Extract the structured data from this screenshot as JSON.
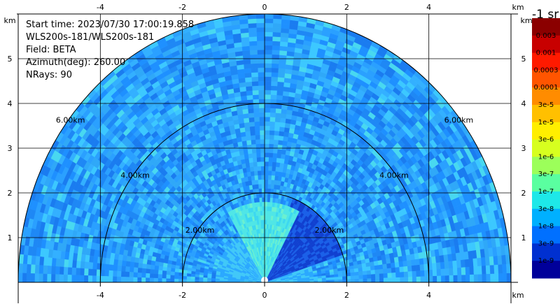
{
  "chart_data": {
    "type": "heatmap",
    "info_lines": [
      "Start time: 2023/07/30 17:00:19.858",
      "WLS200s-181/WLS200s-181",
      "Field: BETA",
      "Azimuth(deg): 260.00",
      "NRays: 90"
    ],
    "x_unit": "km",
    "y_unit": "km",
    "xlim": [
      -6,
      6
    ],
    "ylim": [
      0,
      6
    ],
    "x_ticks": [
      -4,
      -2,
      0,
      2,
      4
    ],
    "y_ticks": [
      1,
      2,
      3,
      4,
      5
    ],
    "range_rings": [
      {
        "radius": 2,
        "label": "2.00km"
      },
      {
        "radius": 4,
        "label": "4.00km"
      },
      {
        "radius": 6,
        "label": "6.00km"
      }
    ],
    "max_range_km": 6,
    "grid": true,
    "colorbar": {
      "title": "-1 sr",
      "labels": [
        "0.003",
        "0.001",
        "0.0003",
        "0.0001",
        "3e-5",
        "1e-5",
        "3e-6",
        "1e-6",
        "3e-7",
        "1e-7",
        "3e-8",
        "1e-8",
        "3e-9",
        "1e-9"
      ],
      "colors": [
        "#8b0000",
        "#c80000",
        "#ff1a00",
        "#ff5500",
        "#ff8c00",
        "#ffc000",
        "#ffee00",
        "#d7ff1f",
        "#9cff5a",
        "#5affa0",
        "#1ee8e8",
        "#00b0ff",
        "#0070ff",
        "#0030d0",
        "#00009a"
      ]
    }
  }
}
